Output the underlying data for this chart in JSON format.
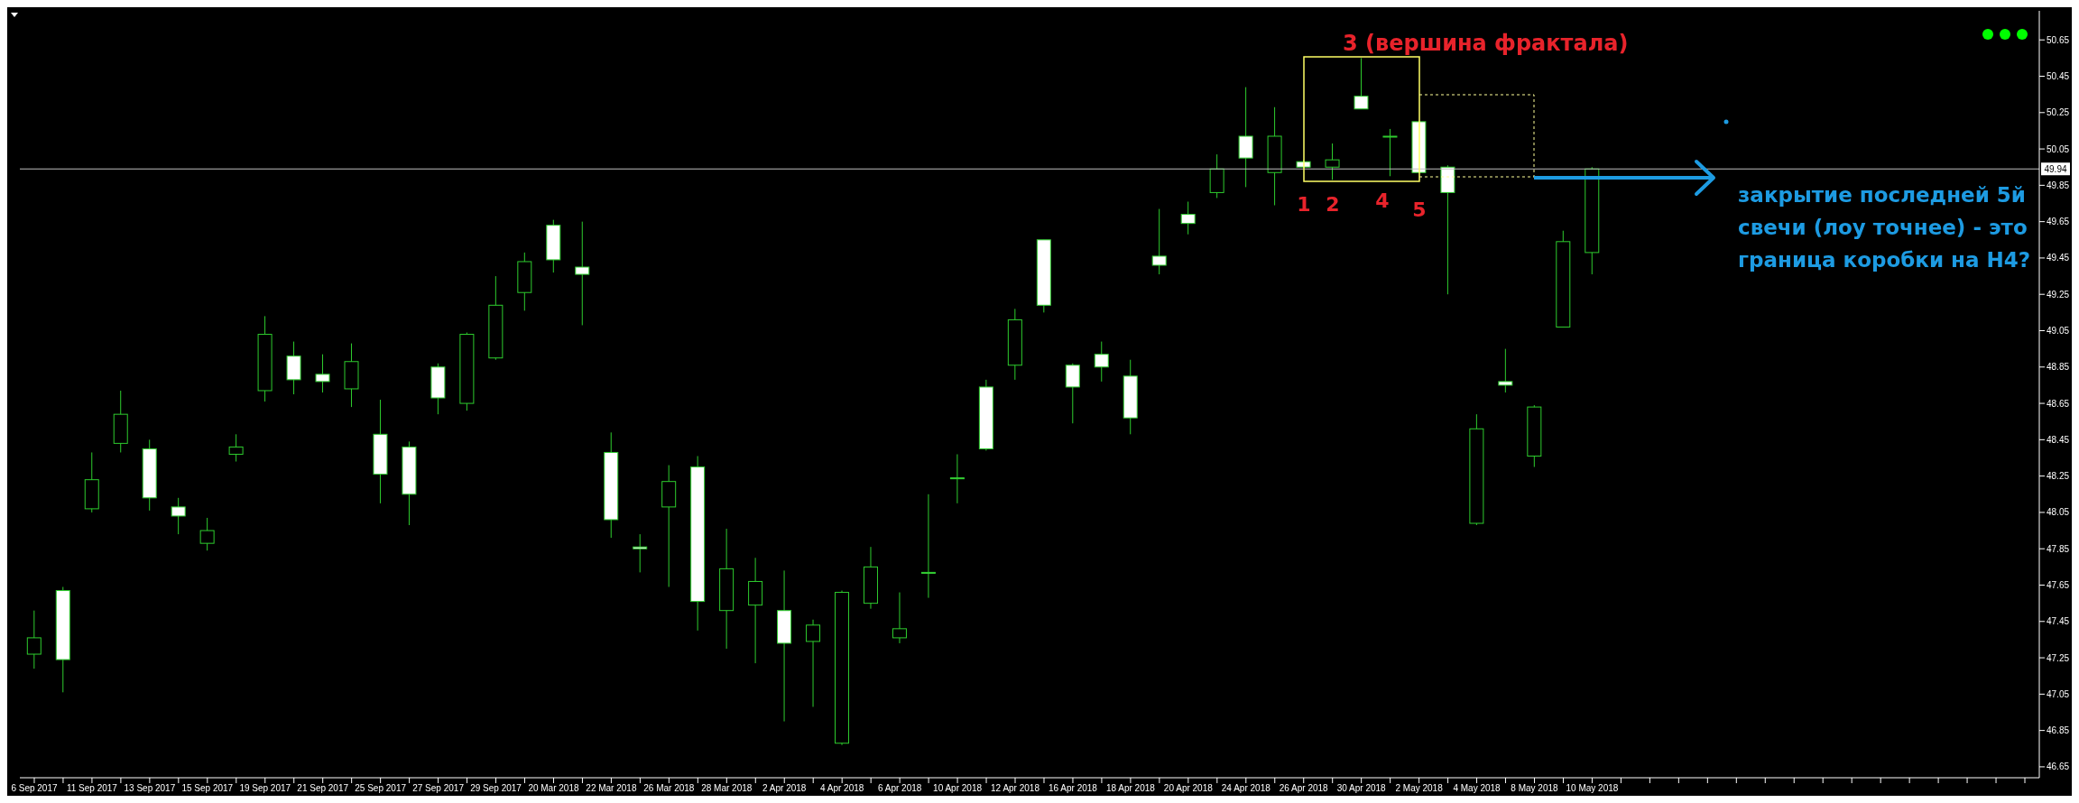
{
  "chart_data": {
    "type": "candlestick",
    "color": "#2ecc2e",
    "categories": [
      "6 Sep 2017",
      null,
      "11 Sep 2017",
      null,
      "13 Sep 2017",
      null,
      "15 Sep 2017",
      null,
      "19 Sep 2017",
      null,
      "21 Sep 2017",
      null,
      "25 Sep 2017",
      null,
      "27 Sep 2017",
      null,
      "29 Sep 2017",
      null,
      "20 Mar 2018",
      null,
      "22 Mar 2018",
      null,
      "26 Mar 2018",
      null,
      "28 Mar 2018",
      null,
      "2 Apr 2018",
      null,
      "4 Apr 2018",
      null,
      "6 Apr 2018",
      null,
      "10 Apr 2018",
      null,
      "12 Apr 2018",
      null,
      "16 Apr 2018",
      null,
      "18 Apr 2018",
      null,
      "20 Apr 2018",
      null,
      "24 Apr 2018",
      null,
      "26 Apr 2018",
      null,
      "30 Apr 2018",
      null,
      "2 May 2018",
      null,
      "4 May 2018",
      null,
      "8 May 2018",
      null,
      "10 May 2018",
      null,
      null,
      null,
      null,
      null,
      null,
      null,
      null,
      null,
      null,
      null,
      null,
      null,
      null,
      null
    ],
    "ohlc": [
      [
        47.27,
        47.51,
        47.19,
        47.36
      ],
      [
        47.62,
        47.64,
        47.06,
        47.24
      ],
      [
        48.07,
        48.38,
        48.05,
        48.23
      ],
      [
        48.43,
        48.72,
        48.38,
        48.59
      ],
      [
        48.4,
        48.45,
        48.06,
        48.13
      ],
      [
        48.08,
        48.13,
        47.93,
        48.03
      ],
      [
        47.88,
        48.02,
        47.84,
        47.95
      ],
      [
        48.37,
        48.48,
        48.33,
        48.41
      ],
      [
        48.72,
        49.13,
        48.66,
        49.03
      ],
      [
        48.91,
        48.99,
        48.7,
        48.78
      ],
      [
        48.81,
        48.92,
        48.71,
        48.77
      ],
      [
        48.73,
        48.98,
        48.63,
        48.88
      ],
      [
        48.48,
        48.67,
        48.1,
        48.26
      ],
      [
        48.41,
        48.44,
        47.98,
        48.15
      ],
      [
        48.85,
        48.87,
        48.59,
        48.68
      ],
      [
        48.65,
        49.04,
        48.61,
        49.03
      ],
      [
        48.9,
        49.35,
        48.89,
        49.19
      ],
      [
        49.26,
        49.48,
        49.16,
        49.43
      ],
      [
        49.63,
        49.66,
        49.37,
        49.44
      ],
      [
        49.4,
        49.65,
        49.08,
        49.36
      ],
      [
        48.38,
        48.49,
        47.91,
        48.01
      ],
      [
        47.86,
        47.93,
        47.72,
        47.85
      ],
      [
        48.08,
        48.31,
        47.64,
        48.22
      ],
      [
        48.3,
        48.36,
        47.4,
        47.56
      ],
      [
        47.51,
        47.96,
        47.3,
        47.74
      ],
      [
        47.54,
        47.8,
        47.22,
        47.67
      ],
      [
        47.51,
        47.73,
        46.9,
        47.33
      ],
      [
        47.34,
        47.46,
        46.98,
        47.43
      ],
      [
        46.78,
        47.62,
        46.77,
        47.61
      ],
      [
        47.55,
        47.86,
        47.52,
        47.75
      ],
      [
        47.36,
        47.61,
        47.33,
        47.41
      ],
      [
        47.72,
        48.15,
        47.58,
        47.72
      ],
      [
        48.24,
        48.37,
        48.1,
        48.24
      ],
      [
        48.74,
        48.78,
        48.39,
        48.4
      ],
      [
        48.86,
        49.17,
        48.78,
        49.11
      ],
      [
        49.55,
        49.55,
        49.15,
        49.19
      ],
      [
        48.86,
        48.87,
        48.54,
        48.74
      ],
      [
        48.92,
        48.99,
        48.77,
        48.85
      ],
      [
        48.8,
        48.89,
        48.48,
        48.57
      ],
      [
        49.46,
        49.72,
        49.36,
        49.41
      ],
      [
        49.69,
        49.76,
        49.58,
        49.64
      ],
      [
        49.81,
        50.02,
        49.78,
        49.94
      ],
      [
        50.12,
        50.39,
        49.84,
        50.0
      ],
      [
        49.92,
        50.28,
        49.74,
        50.12
      ],
      [
        49.98,
        49.99,
        49.95,
        49.95
      ],
      [
        49.95,
        50.08,
        49.88,
        49.99
      ],
      [
        50.34,
        50.55,
        50.27,
        50.27
      ],
      [
        50.12,
        50.16,
        49.9,
        50.12
      ],
      [
        50.2,
        50.2,
        49.92,
        49.92
      ],
      [
        49.95,
        49.96,
        49.25,
        49.81
      ],
      [
        47.99,
        48.59,
        47.98,
        48.51
      ],
      [
        48.77,
        48.95,
        48.71,
        48.75
      ],
      [
        48.36,
        48.64,
        48.3,
        48.63
      ],
      [
        49.07,
        49.6,
        49.07,
        49.54
      ],
      [
        49.48,
        49.95,
        49.36,
        49.94
      ],
      null,
      null,
      null,
      null,
      null,
      null,
      null,
      null,
      null,
      null,
      null,
      null,
      null,
      null,
      null
    ],
    "ylim": [
      46.59,
      50.81
    ],
    "yticks": [
      46.65,
      46.85,
      47.05,
      47.25,
      47.45,
      47.65,
      47.85,
      48.05,
      48.25,
      48.45,
      48.65,
      48.85,
      49.05,
      49.25,
      49.45,
      49.65,
      49.85,
      50.05,
      50.25,
      50.45,
      50.65
    ],
    "ref_lines": [
      {
        "axis": "y",
        "value": 49.94,
        "label": "49.94",
        "color": "#c0c0c0"
      }
    ],
    "annotations": [
      "3 (вершина фрактала)",
      "1",
      "2",
      "4",
      "5",
      "закрытие последней 5й свечи (лоу точнее) - это граница коробки на H4?"
    ]
  }
}
